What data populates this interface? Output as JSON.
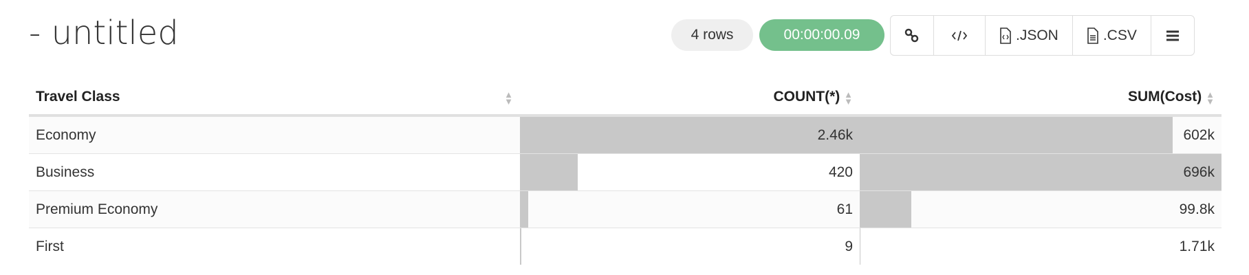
{
  "title": "- untitled",
  "status": {
    "rows": "4 rows",
    "elapsed": "00:00:00.09",
    "elapsed_color": "#74c08c"
  },
  "toolbar": {
    "link_icon": "link-icon",
    "embed_icon": "code-icon",
    "json_label": ".JSON",
    "csv_label": ".CSV",
    "menu_icon": "menu-icon"
  },
  "table": {
    "columns": [
      "Travel Class",
      "COUNT(*)",
      "SUM(Cost)"
    ],
    "rows": [
      {
        "cls": "Economy",
        "count": "2.46k",
        "count_frac": 1.0,
        "sum": "602k",
        "sum_frac": 0.865
      },
      {
        "cls": "Business",
        "count": "420",
        "count_frac": 0.171,
        "sum": "696k",
        "sum_frac": 1.0
      },
      {
        "cls": "Premium Economy",
        "count": "61",
        "count_frac": 0.025,
        "sum": "99.8k",
        "sum_frac": 0.143
      },
      {
        "cls": "First",
        "count": "9",
        "count_frac": 0.004,
        "sum": "1.71k",
        "sum_frac": 0.002
      }
    ]
  }
}
